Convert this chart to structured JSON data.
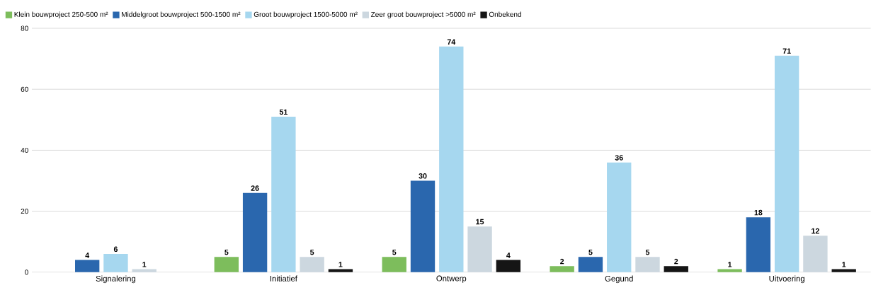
{
  "chart_data": {
    "type": "bar",
    "categories": [
      "Signalering",
      "Initiatief",
      "Ontwerp",
      "Gegund",
      "Uitvoering"
    ],
    "series": [
      {
        "name": "Klein bouwproject 250-500 m²",
        "color": "#7dbd5c",
        "values": [
          null,
          5,
          5,
          2,
          1
        ]
      },
      {
        "name": "Middelgroot bouwproject 500-1500 m²",
        "color": "#2a67ae",
        "values": [
          4,
          26,
          30,
          5,
          18
        ]
      },
      {
        "name": "Groot bouwproject 1500-5000 m²",
        "color": "#a6d7ef",
        "values": [
          6,
          51,
          74,
          36,
          71
        ]
      },
      {
        "name": "Zeer groot bouwproject >5000 m²",
        "color": "#ccd7df",
        "values": [
          1,
          5,
          15,
          5,
          12
        ]
      },
      {
        "name": "Onbekend",
        "color": "#151515",
        "values": [
          null,
          1,
          4,
          2,
          1
        ]
      }
    ],
    "ylim": [
      0,
      80
    ],
    "yticks": [
      0,
      20,
      40,
      60,
      80
    ],
    "grid": "y",
    "legend": "top left",
    "data_labels": true
  }
}
